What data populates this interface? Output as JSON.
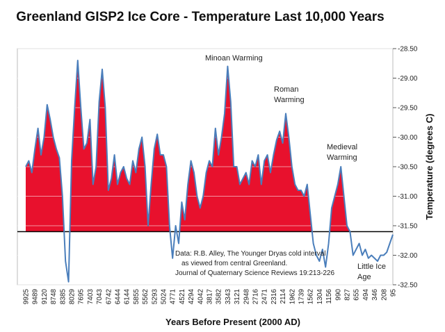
{
  "chart_data": {
    "type": "area",
    "title": "Greenland GISP2 Ice Core - Temperature  Last 10,000 Years",
    "x_label": "Years Before Present (2000 AD)",
    "y_label": "Temperature (degrees C)",
    "categories": [
      "9925",
      null,
      null,
      "9489",
      null,
      null,
      "9120",
      null,
      null,
      "8748",
      null,
      null,
      "8385",
      null,
      null,
      "8029",
      null,
      null,
      "7695",
      null,
      null,
      "7403",
      null,
      null,
      "7043",
      null,
      null,
      "6742",
      null,
      null,
      "6444",
      null,
      null,
      "6144",
      null,
      null,
      "5855",
      null,
      null,
      "5562",
      null,
      null,
      "5293",
      null,
      null,
      "5024",
      null,
      null,
      "4771",
      null,
      null,
      "4521",
      null,
      null,
      "4294",
      null,
      null,
      "4042",
      null,
      null,
      "3817",
      null,
      null,
      "3582",
      null,
      null,
      "3343",
      null,
      null,
      "3121",
      null,
      null,
      "2948",
      null,
      null,
      "2716",
      null,
      null,
      "2471",
      null,
      null,
      "2316",
      null,
      null,
      "2114",
      null,
      null,
      "1962",
      null,
      null,
      "1739",
      null,
      null,
      "1562",
      null,
      null,
      "1304",
      null,
      null,
      "1156",
      null,
      null,
      "990",
      null,
      null,
      "827",
      null,
      null,
      "655",
      null,
      null,
      "494",
      null,
      null,
      "346",
      null,
      null,
      "208",
      null,
      null,
      "95"
    ],
    "values": [
      -30.5,
      -30.4,
      -30.6,
      -30.2,
      -29.85,
      -30.3,
      -30.0,
      -29.45,
      -29.7,
      -30.0,
      -30.2,
      -30.35,
      -31.0,
      -32.1,
      -32.45,
      -30.4,
      -29.5,
      -28.7,
      -29.5,
      -30.2,
      -30.1,
      -29.7,
      -30.8,
      -30.5,
      -29.4,
      -28.85,
      -29.5,
      -30.9,
      -30.7,
      -30.3,
      -30.8,
      -30.6,
      -30.5,
      -30.7,
      -30.8,
      -30.4,
      -30.6,
      -30.2,
      -30.0,
      -30.5,
      -31.5,
      -30.8,
      -30.2,
      -29.95,
      -30.3,
      -30.3,
      -30.5,
      -31.5,
      -32.05,
      -31.5,
      -31.8,
      -31.1,
      -31.4,
      -30.8,
      -30.4,
      -30.6,
      -31.0,
      -31.2,
      -31.0,
      -30.6,
      -30.4,
      -30.5,
      -29.85,
      -30.3,
      -30.0,
      -29.6,
      -28.8,
      -29.4,
      -30.5,
      -30.5,
      -30.8,
      -30.7,
      -30.6,
      -30.8,
      -30.4,
      -30.5,
      -30.3,
      -30.8,
      -30.4,
      -30.3,
      -30.6,
      -30.3,
      -30.05,
      -29.9,
      -30.1,
      -29.6,
      -30.0,
      -30.5,
      -30.8,
      -30.9,
      -30.9,
      -31.0,
      -30.8,
      -31.3,
      -31.8,
      -32.0,
      -32.1,
      -31.9,
      -32.2,
      -31.8,
      -31.2,
      -31.0,
      -30.8,
      -30.5,
      -31.0,
      -31.5,
      -31.6,
      -32.0,
      -31.9,
      -31.8,
      -32.0,
      -31.9,
      -32.05,
      -32.0,
      -32.05,
      -32.1,
      -32.0,
      -32.0,
      -31.95,
      -31.8,
      -31.65
    ],
    "color": "#e8112d",
    "line_color": "#4a7ebb",
    "reference_line": -31.6,
    "ylim": [
      -32.5,
      -28.5
    ],
    "yticks": [
      {
        "value": -28.5,
        "label": "-28.50"
      },
      {
        "value": -29,
        "label": "-29.00"
      },
      {
        "value": -29.5,
        "label": "-29.50"
      },
      {
        "value": -30,
        "label": "-30.00"
      },
      {
        "value": -30.5,
        "label": "-30.50"
      },
      {
        "value": -31,
        "label": "-31.00"
      },
      {
        "value": -31.5,
        "label": "-31.50"
      },
      {
        "value": -32,
        "label": "-32.00"
      },
      {
        "value": -32.5,
        "label": "-32.50"
      }
    ],
    "grid": true,
    "annotations": [
      [
        "Minoan Warming"
      ],
      [
        "Roman",
        "Warming"
      ],
      [
        "Medieval",
        "Warming"
      ],
      [
        "Little Ice",
        "Age"
      ],
      [
        "Data: R.B. Alley,  The Younger Dryas cold interval",
        "as viewed from central Greenland.",
        "Journal of Quaternary  Science Reviews 19:213-226"
      ]
    ]
  }
}
